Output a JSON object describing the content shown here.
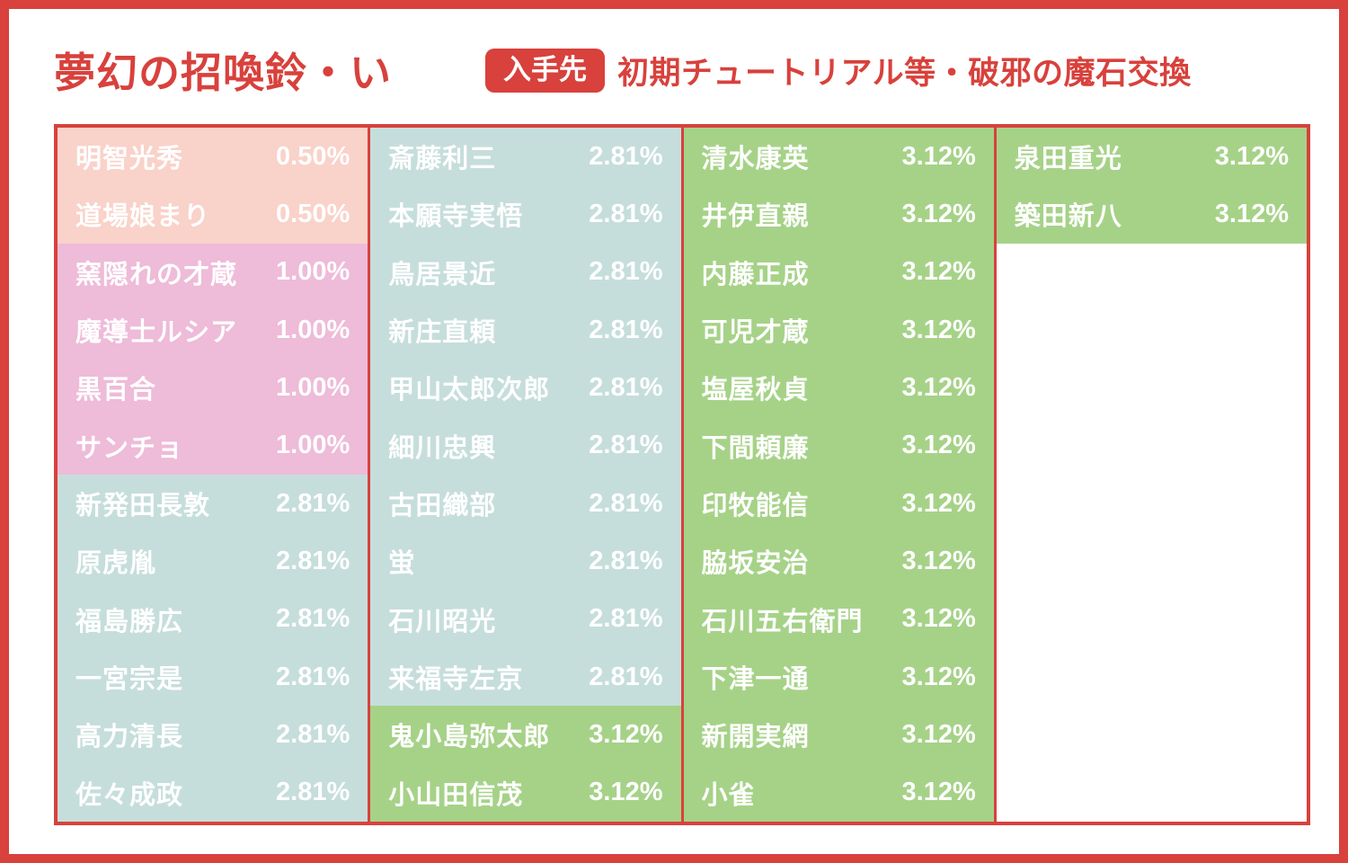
{
  "header": {
    "title": "夢幻の招喚鈴・い",
    "badge_label": "入手先",
    "source_text": "初期チュートリアル等・破邪の魔石交換"
  },
  "colors": {
    "accent_red": "#d8413c",
    "tier_050": "#f9d2c9",
    "tier_100": "#eebbd8",
    "tier_281": "#c6dedb",
    "tier_312": "#a6d288",
    "text_white": "#ffffff"
  },
  "chart_data": {
    "type": "table",
    "title": "夢幻の招喚鈴・い",
    "subtitle": "入手先：初期チュートリアル等・破邪の魔石交換",
    "rows_per_column": 12,
    "rate_tiers": {
      "tier_050": "0.50%",
      "tier_100": "1.00%",
      "tier_281": "2.81%",
      "tier_312": "3.12%"
    },
    "columns": [
      {
        "entries": [
          {
            "name": "明智光秀",
            "rate": "0.50%",
            "tier": "tier_050"
          },
          {
            "name": "道場娘まり",
            "rate": "0.50%",
            "tier": "tier_050"
          },
          {
            "name": "窯隠れの才蔵",
            "rate": "1.00%",
            "tier": "tier_100"
          },
          {
            "name": "魔導士ルシア",
            "rate": "1.00%",
            "tier": "tier_100"
          },
          {
            "name": "黒百合",
            "rate": "1.00%",
            "tier": "tier_100"
          },
          {
            "name": "サンチョ",
            "rate": "1.00%",
            "tier": "tier_100"
          },
          {
            "name": "新発田長敦",
            "rate": "2.81%",
            "tier": "tier_281"
          },
          {
            "name": "原虎胤",
            "rate": "2.81%",
            "tier": "tier_281"
          },
          {
            "name": "福島勝広",
            "rate": "2.81%",
            "tier": "tier_281"
          },
          {
            "name": "一宮宗是",
            "rate": "2.81%",
            "tier": "tier_281"
          },
          {
            "name": "高力清長",
            "rate": "2.81%",
            "tier": "tier_281"
          },
          {
            "name": "佐々成政",
            "rate": "2.81%",
            "tier": "tier_281"
          }
        ]
      },
      {
        "entries": [
          {
            "name": "斎藤利三",
            "rate": "2.81%",
            "tier": "tier_281"
          },
          {
            "name": "本願寺実悟",
            "rate": "2.81%",
            "tier": "tier_281"
          },
          {
            "name": "鳥居景近",
            "rate": "2.81%",
            "tier": "tier_281"
          },
          {
            "name": "新庄直頼",
            "rate": "2.81%",
            "tier": "tier_281"
          },
          {
            "name": "甲山太郎次郎",
            "rate": "2.81%",
            "tier": "tier_281"
          },
          {
            "name": "細川忠興",
            "rate": "2.81%",
            "tier": "tier_281"
          },
          {
            "name": "古田織部",
            "rate": "2.81%",
            "tier": "tier_281"
          },
          {
            "name": "蛍",
            "rate": "2.81%",
            "tier": "tier_281"
          },
          {
            "name": "石川昭光",
            "rate": "2.81%",
            "tier": "tier_281"
          },
          {
            "name": "来福寺左京",
            "rate": "2.81%",
            "tier": "tier_281"
          },
          {
            "name": "鬼小島弥太郎",
            "rate": "3.12%",
            "tier": "tier_312"
          },
          {
            "name": "小山田信茂",
            "rate": "3.12%",
            "tier": "tier_312"
          }
        ]
      },
      {
        "entries": [
          {
            "name": "清水康英",
            "rate": "3.12%",
            "tier": "tier_312"
          },
          {
            "name": "井伊直親",
            "rate": "3.12%",
            "tier": "tier_312"
          },
          {
            "name": "内藤正成",
            "rate": "3.12%",
            "tier": "tier_312"
          },
          {
            "name": "可児才蔵",
            "rate": "3.12%",
            "tier": "tier_312"
          },
          {
            "name": "塩屋秋貞",
            "rate": "3.12%",
            "tier": "tier_312"
          },
          {
            "name": "下間頼廉",
            "rate": "3.12%",
            "tier": "tier_312"
          },
          {
            "name": "印牧能信",
            "rate": "3.12%",
            "tier": "tier_312"
          },
          {
            "name": "脇坂安治",
            "rate": "3.12%",
            "tier": "tier_312"
          },
          {
            "name": "石川五右衛門",
            "rate": "3.12%",
            "tier": "tier_312"
          },
          {
            "name": "下津一通",
            "rate": "3.12%",
            "tier": "tier_312"
          },
          {
            "name": "新開実網",
            "rate": "3.12%",
            "tier": "tier_312"
          },
          {
            "name": "小雀",
            "rate": "3.12%",
            "tier": "tier_312"
          }
        ]
      },
      {
        "entries": [
          {
            "name": "泉田重光",
            "rate": "3.12%",
            "tier": "tier_312"
          },
          {
            "name": "築田新八",
            "rate": "3.12%",
            "tier": "tier_312"
          }
        ]
      }
    ]
  }
}
